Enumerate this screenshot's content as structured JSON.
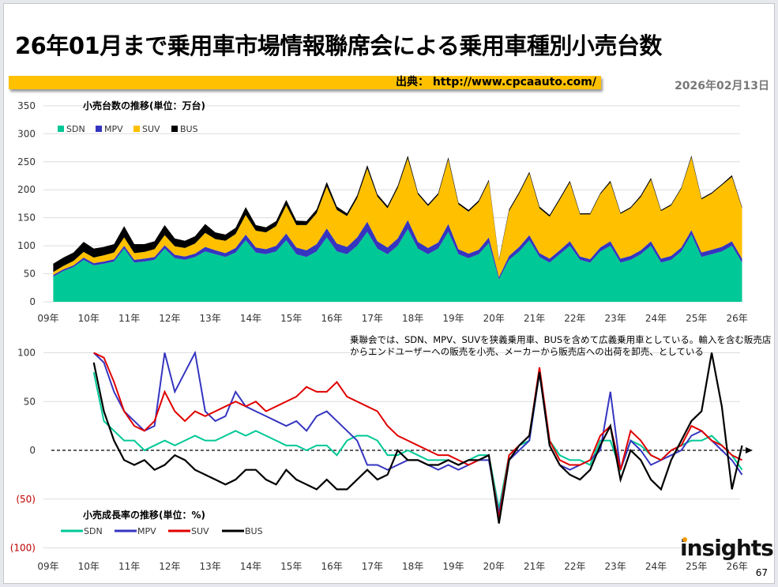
{
  "header": {
    "title": "26年01月まで乗用車市場情報聯席会による乗用車種別小売台数",
    "source": "出典： http://www.cpcaauto.com/",
    "date": "2026年02月13日"
  },
  "note": "乗聯会では、SDN、MPV、SUVを狭義乗用車、BUSを含めて広義乗用車としている。輸入を含む販売店からエンドユーザーへの販売を小売、メーカーから販売店への出荷を卸売、としている",
  "page_number": "67",
  "logo": "insights",
  "colors": {
    "SDN": "#00c896",
    "MPV": "#3535c0",
    "SUV": "#ffc000",
    "BUS": "#000000",
    "SUV_line": "#e00000",
    "neg_label": "#c00000"
  },
  "chart_data": [
    {
      "type": "area",
      "stacked": true,
      "title": "小売台数の推移(単位：万台)",
      "x_ticks": [
        "09年",
        "10年",
        "11年",
        "12年",
        "13年",
        "14年",
        "15年",
        "16年",
        "17年",
        "18年",
        "19年",
        "20年",
        "21年",
        "22年",
        "23年",
        "24年",
        "25年",
        "26年"
      ],
      "y_ticks": [
        "0",
        "50",
        "100",
        "150",
        "200",
        "250",
        "300",
        "350"
      ],
      "ylim": [
        0,
        350
      ],
      "x_start": "2009-01",
      "x_step": "quarter",
      "legend": "top-left",
      "grid": true,
      "series": [
        {
          "name": "SDN",
          "values": [
            45,
            55,
            62,
            75,
            65,
            68,
            72,
            95,
            70,
            72,
            75,
            95,
            78,
            75,
            80,
            90,
            85,
            80,
            88,
            110,
            88,
            85,
            90,
            110,
            85,
            80,
            90,
            115,
            90,
            85,
            100,
            125,
            95,
            85,
            100,
            130,
            95,
            85,
            95,
            125,
            85,
            78,
            85,
            105,
            40,
            75,
            90,
            110,
            80,
            70,
            85,
            100,
            75,
            70,
            90,
            100,
            70,
            75,
            85,
            100,
            70,
            75,
            90,
            120,
            80,
            85,
            90,
            100,
            70
          ]
        },
        {
          "name": "MPV",
          "values": [
            3,
            3,
            3,
            4,
            4,
            4,
            4,
            5,
            5,
            5,
            5,
            6,
            6,
            6,
            6,
            8,
            7,
            7,
            8,
            10,
            9,
            9,
            10,
            12,
            12,
            12,
            13,
            16,
            14,
            13,
            15,
            18,
            13,
            12,
            13,
            16,
            12,
            11,
            11,
            14,
            9,
            8,
            8,
            10,
            4,
            7,
            8,
            9,
            7,
            7,
            7,
            8,
            6,
            6,
            7,
            8,
            7,
            7,
            7,
            8,
            7,
            7,
            7,
            8,
            8,
            8,
            8,
            8,
            7
          ]
        },
        {
          "name": "SUV",
          "values": [
            5,
            6,
            8,
            10,
            10,
            11,
            12,
            15,
            12,
            12,
            14,
            18,
            15,
            15,
            18,
            25,
            20,
            22,
            25,
            35,
            30,
            30,
            35,
            50,
            40,
            45,
            55,
            75,
            60,
            55,
            70,
            95,
            80,
            70,
            90,
            110,
            85,
            75,
            85,
            115,
            80,
            75,
            85,
            100,
            30,
            80,
            95,
            110,
            80,
            75,
            90,
            105,
            75,
            80,
            95,
            105,
            80,
            85,
            95,
            110,
            85,
            90,
            105,
            130,
            95,
            100,
            110,
            115,
            90
          ]
        },
        {
          "name": "BUS",
          "values": [
            15,
            15,
            15,
            18,
            16,
            15,
            15,
            20,
            16,
            14,
            14,
            18,
            14,
            13,
            13,
            16,
            12,
            11,
            11,
            14,
            10,
            9,
            9,
            10,
            8,
            7,
            7,
            8,
            6,
            5,
            5,
            6,
            4,
            4,
            4,
            5,
            3,
            3,
            3,
            4,
            3,
            3,
            3,
            3,
            2,
            3,
            3,
            3,
            3,
            3,
            3,
            3,
            2,
            2,
            2,
            3,
            2,
            2,
            3,
            3,
            2,
            2,
            2,
            3,
            2,
            2,
            2,
            3,
            2
          ]
        }
      ]
    },
    {
      "type": "line",
      "title": "小売成長率の推移(単位：%)",
      "x_ticks": [
        "09年",
        "10年",
        "11年",
        "12年",
        "13年",
        "14年",
        "15年",
        "16年",
        "17年",
        "18年",
        "19年",
        "20年",
        "21年",
        "22年",
        "23年",
        "24年",
        "25年",
        "26年"
      ],
      "y_ticks": [
        "100",
        "50",
        "0",
        "(50)",
        "(100)"
      ],
      "ylim": [
        -100,
        100
      ],
      "x_start": "2010-01",
      "x_step": "quarter",
      "legend": "bottom-left",
      "zero_line": "dashed-arrow",
      "series": [
        {
          "name": "SDN",
          "values": [
            80,
            30,
            20,
            10,
            10,
            0,
            5,
            10,
            5,
            10,
            15,
            10,
            10,
            15,
            20,
            15,
            20,
            15,
            10,
            5,
            5,
            0,
            5,
            5,
            -5,
            10,
            15,
            15,
            10,
            -5,
            -5,
            0,
            -5,
            -10,
            -10,
            -10,
            -15,
            -10,
            -5,
            -5,
            -60,
            -5,
            5,
            10,
            80,
            10,
            -5,
            -10,
            -10,
            -15,
            10,
            10,
            -20,
            10,
            5,
            -5,
            -10,
            0,
            5,
            10,
            10,
            15,
            5,
            -5,
            -20
          ]
        },
        {
          "name": "MPV",
          "values": [
            100,
            90,
            60,
            40,
            30,
            20,
            25,
            100,
            60,
            80,
            100,
            40,
            30,
            35,
            60,
            45,
            40,
            35,
            30,
            25,
            30,
            20,
            35,
            40,
            30,
            20,
            10,
            -15,
            -15,
            -20,
            -15,
            -10,
            -10,
            -15,
            -20,
            -15,
            -20,
            -15,
            -10,
            -10,
            -65,
            -10,
            0,
            10,
            80,
            5,
            -15,
            -20,
            -15,
            -10,
            0,
            60,
            -20,
            10,
            0,
            -15,
            -10,
            -5,
            0,
            15,
            20,
            10,
            0,
            -10,
            -25
          ]
        },
        {
          "name": "SUV",
          "values": [
            100,
            95,
            70,
            40,
            25,
            20,
            30,
            60,
            40,
            30,
            40,
            35,
            40,
            45,
            50,
            45,
            50,
            40,
            45,
            50,
            55,
            65,
            60,
            60,
            70,
            55,
            50,
            45,
            40,
            25,
            15,
            10,
            5,
            0,
            -5,
            -5,
            -10,
            -15,
            -10,
            -5,
            -70,
            -5,
            5,
            15,
            85,
            10,
            -10,
            -15,
            -15,
            -10,
            15,
            25,
            -20,
            20,
            10,
            -5,
            -10,
            0,
            5,
            25,
            20,
            10,
            5,
            -5,
            -10
          ]
        },
        {
          "name": "BUS",
          "values": [
            90,
            40,
            10,
            -10,
            -15,
            -10,
            -20,
            -15,
            -5,
            -10,
            -20,
            -25,
            -30,
            -35,
            -30,
            -20,
            -20,
            -30,
            -35,
            -20,
            -30,
            -35,
            -40,
            -30,
            -40,
            -40,
            -30,
            -20,
            -30,
            -25,
            0,
            -10,
            -10,
            -15,
            -15,
            -10,
            -15,
            -10,
            -10,
            -5,
            -75,
            -10,
            5,
            15,
            80,
            5,
            -15,
            -25,
            -30,
            -20,
            5,
            25,
            -30,
            0,
            -10,
            -30,
            -40,
            -10,
            10,
            30,
            40,
            100,
            45,
            -40,
            5
          ]
        }
      ]
    }
  ]
}
